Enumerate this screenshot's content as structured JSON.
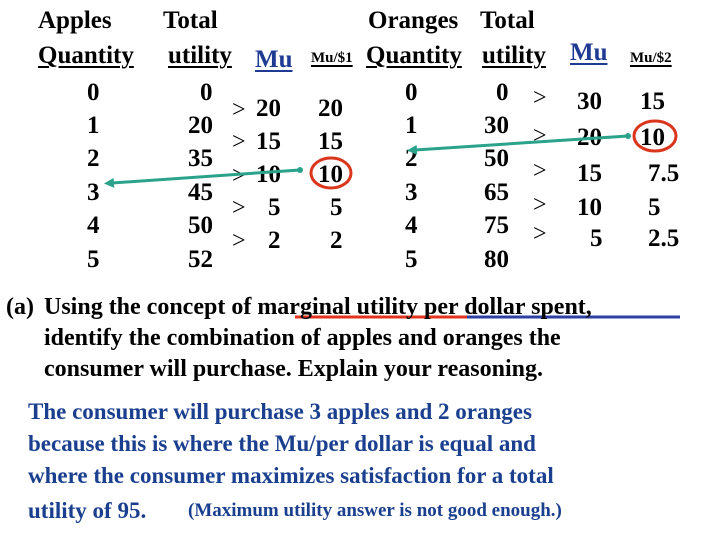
{
  "apples": {
    "headers": {
      "quantity_top": "Apples",
      "quantity_bottom": "Quantity",
      "total_top": "Total",
      "total_bottom": "utility",
      "mu": "Mu",
      "mu_per_dollar": "Mu/$1"
    },
    "rows": [
      {
        "qty": "0",
        "total": "0"
      },
      {
        "qty": "1",
        "total": "20"
      },
      {
        "qty": "2",
        "total": "35"
      },
      {
        "qty": "3",
        "total": "45"
      },
      {
        "qty": "4",
        "total": "50"
      },
      {
        "qty": "5",
        "total": "52"
      }
    ],
    "mu": [
      "20",
      "15",
      "10",
      "5",
      "2"
    ],
    "mu_per_dollar": [
      "20",
      "15",
      "10",
      "5",
      "2"
    ]
  },
  "oranges": {
    "headers": {
      "quantity_top": "Oranges",
      "quantity_bottom": "Quantity",
      "total_top": "Total",
      "total_bottom": "utility",
      "mu": "Mu",
      "mu_per_dollar": "Mu/$2"
    },
    "rows": [
      {
        "qty": "0",
        "total": "0"
      },
      {
        "qty": "1",
        "total": "30"
      },
      {
        "qty": "2",
        "total": "50"
      },
      {
        "qty": "3",
        "total": "65"
      },
      {
        "qty": "4",
        "total": "75"
      },
      {
        "qty": "5",
        "total": "80"
      }
    ],
    "mu": [
      "30",
      "20",
      "15",
      "10",
      "5"
    ],
    "mu_per_dollar": [
      "15",
      "10",
      "7.5",
      "5",
      "2.5"
    ]
  },
  "gt_symbol": ">",
  "question": {
    "label": "(a)",
    "line1": "Using the concept of marginal utility per dollar spent,",
    "line2": "identify the combination of apples and oranges the",
    "line3": "consumer will purchase. Explain your reasoning."
  },
  "answer": {
    "line1": "The consumer will purchase 3 apples and 2 oranges",
    "line2": "because this is where the Mu/per dollar is equal and",
    "line3": "where the consumer maximizes satisfaction for a total",
    "line4": "utility of 95.",
    "note": "(Maximum utility answer is not good enough.)"
  },
  "colors": {
    "arrow": "#2aa38a",
    "circle": "#d9361c",
    "underline_red": "#e0341d",
    "underline_blue": "#2c3fa3",
    "answer_text": "#1a3f8f"
  }
}
